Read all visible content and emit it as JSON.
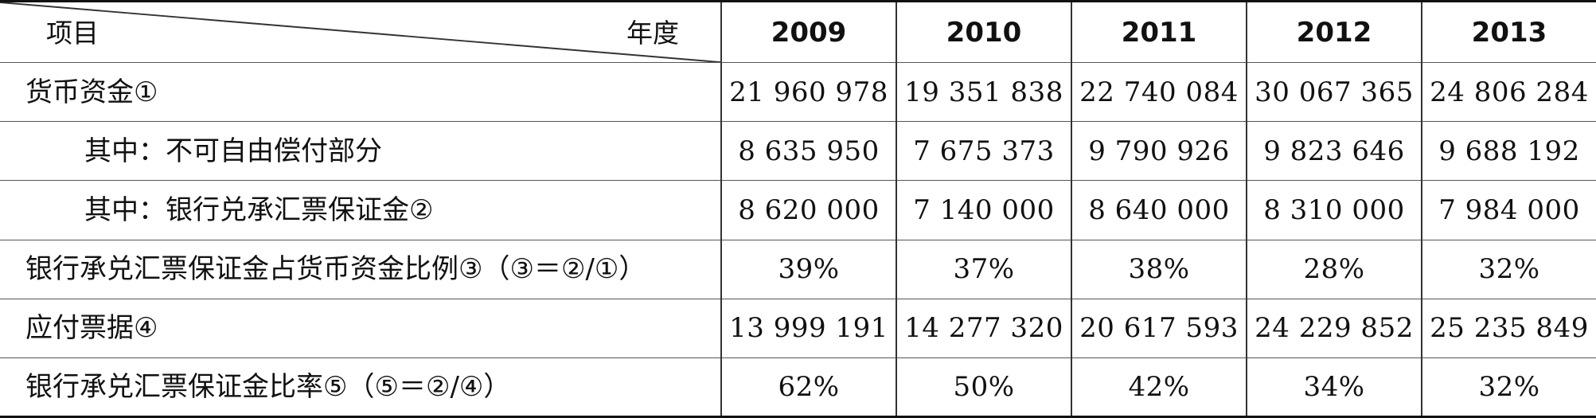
{
  "header": {
    "item_label": "项目",
    "year_label": "年度",
    "years": [
      "2009",
      "2010",
      "2011",
      "2012",
      "2013"
    ]
  },
  "rows": [
    {
      "label": "货币资金①",
      "values": [
        "21 960 978",
        "19 351 838",
        "22 740 084",
        "30 067 365",
        "24 806 284"
      ]
    },
    {
      "label": "其中：不可自由偿付部分",
      "values": [
        "8 635 950",
        "7 675 373",
        "9 790 926",
        "9 823 646",
        "9 688 192"
      ]
    },
    {
      "label": "其中：银行兑承汇票保证金②",
      "values": [
        "8 620 000",
        "7 140 000",
        "8 640 000",
        "8 310 000",
        "7 984 000"
      ]
    },
    {
      "label": "银行承兑汇票保证金占货币资金比例③（③＝②/①）",
      "values": [
        "39%",
        "37%",
        "38%",
        "28%",
        "32%"
      ]
    },
    {
      "label": "应付票据④",
      "values": [
        "13 999 191",
        "14 277 320",
        "20 617 593",
        "24 229 852",
        "25 235 849"
      ]
    },
    {
      "label": "银行承兑汇票保证金比率⑤（⑤＝②/④）",
      "values": [
        "62%",
        "50%",
        "42%",
        "34%",
        "32%"
      ]
    }
  ]
}
